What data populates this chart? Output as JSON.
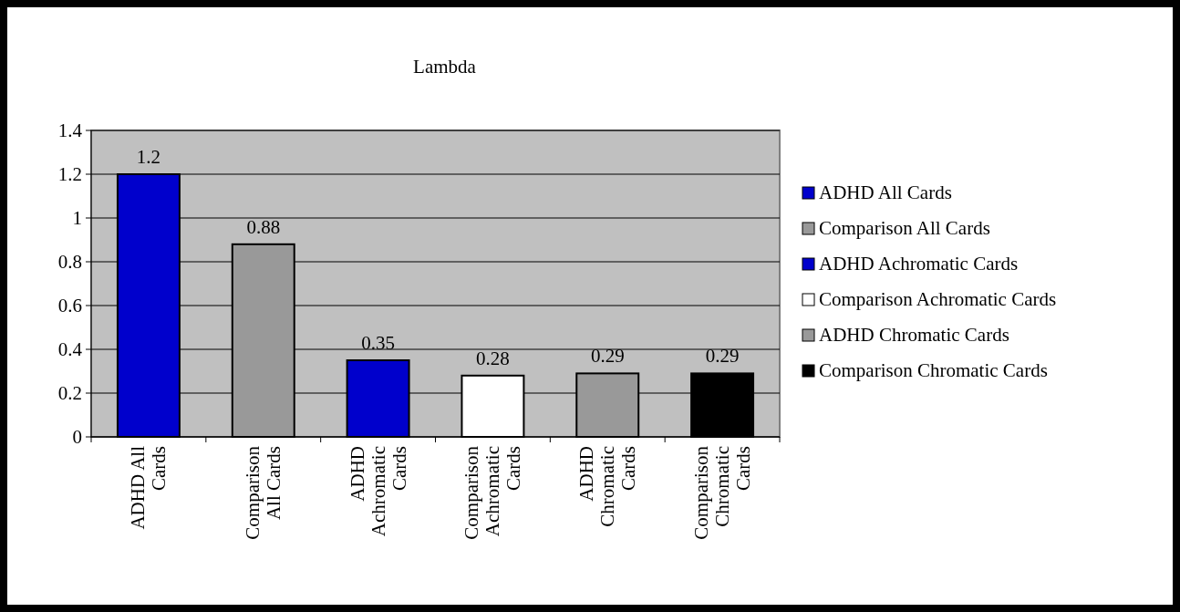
{
  "chart_data": {
    "type": "bar",
    "title": "Lambda",
    "categories": [
      "ADHD All Cards",
      "Comparison All Cards",
      "ADHD Achromatic Cards",
      "Comparison Achromatic Cards",
      "ADHD Chromatic Cards",
      "Comparison Chromatic Cards"
    ],
    "series": [
      {
        "name": "ADHD All Cards",
        "color": "#0000cc",
        "values": [
          1.2,
          null,
          null,
          null,
          null,
          null
        ]
      },
      {
        "name": "Comparison All Cards",
        "color": "#999999",
        "values": [
          null,
          0.88,
          null,
          null,
          null,
          null
        ]
      },
      {
        "name": "ADHD Achromatic Cards",
        "color": "#0000cc",
        "values": [
          null,
          null,
          0.35,
          null,
          null,
          null
        ]
      },
      {
        "name": "Comparison Achromatic Cards",
        "color": "#ffffff",
        "values": [
          null,
          null,
          null,
          0.28,
          null,
          null
        ]
      },
      {
        "name": "ADHD Chromatic Cards",
        "color": "#999999",
        "values": [
          null,
          null,
          null,
          null,
          0.29,
          null
        ]
      },
      {
        "name": "Comparison Chromatic Cards",
        "color": "#000000",
        "values": [
          null,
          null,
          null,
          null,
          null,
          0.29
        ]
      }
    ],
    "ylim": [
      0,
      1.4
    ],
    "yticks": [
      0,
      0.2,
      0.4,
      0.6,
      0.8,
      1,
      1.2,
      1.4
    ],
    "grid": "y",
    "legend": "right",
    "data_labels": true
  }
}
